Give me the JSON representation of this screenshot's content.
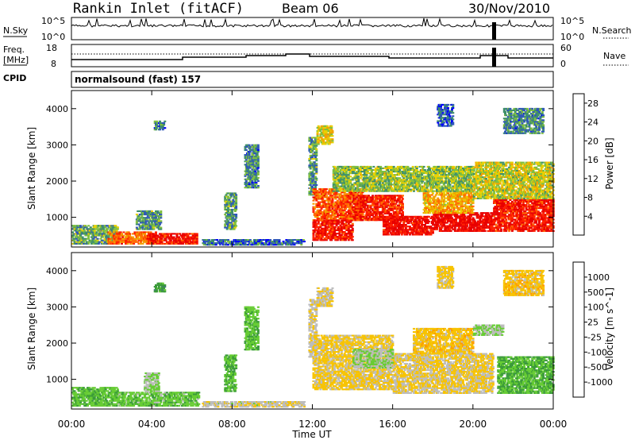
{
  "header": {
    "station": "Rankin Inlet (fitACF)",
    "beam": "Beam 06",
    "date": "30/Nov/2010"
  },
  "panels": {
    "nsky": {
      "label": "N.Sky",
      "top_tick": "10^5",
      "bottom_tick": "10^0"
    },
    "nsearch": {
      "label": "N.Search",
      "top_tick": "10^5",
      "bottom_tick": "10^0"
    },
    "freq": {
      "label_line1": "Freq.",
      "label_line2": "[MHz]",
      "top_tick": "18",
      "bottom_tick": "8"
    },
    "nave": {
      "label": "Nave",
      "top_tick": "60",
      "bottom_tick": "0"
    },
    "cpid": {
      "label": "CPID",
      "text": "normalsound (fast) 157"
    }
  },
  "colors": {
    "power_scale": [
      "#0000ff",
      "#2f57b8",
      "#3f8f6a",
      "#7fbf3f",
      "#e8d000",
      "#f2a000",
      "#ff6a00",
      "#ff2000",
      "#e80000"
    ],
    "velocity_scale": [
      "#ff0000",
      "#ff5a00",
      "#ff9a00",
      "#f7c300",
      "#bcbcbc",
      "#66cc33",
      "#3a9a3a",
      "#3f7f6a",
      "#2e5fa8",
      "#1f3fbf"
    ]
  },
  "chart_data": [
    {
      "type": "heatmap",
      "name": "power",
      "ylabel": "Slant Range [km]",
      "xlabel": "",
      "x_ticks": [
        "00:00",
        "04:00",
        "08:00",
        "12:00",
        "16:00",
        "20:00",
        "00:00"
      ],
      "y_ticks": [
        1000,
        2000,
        3000,
        4000
      ],
      "x_range_hours": [
        0,
        24
      ],
      "y_range_km": [
        180,
        4500
      ],
      "colorbar": {
        "label": "Power [dB]",
        "ticks": [
          4,
          8,
          12,
          16,
          20,
          24,
          28
        ],
        "range": [
          0,
          30
        ]
      },
      "regions": [
        {
          "t0": 0,
          "t1": 2.3,
          "r0": 250,
          "r1": 750,
          "value": 10
        },
        {
          "t0": 1.8,
          "t1": 4.2,
          "r0": 250,
          "r1": 600,
          "value": 22
        },
        {
          "t0": 3.8,
          "t1": 6.2,
          "r0": 250,
          "r1": 550,
          "value": 27
        },
        {
          "t0": 3.2,
          "t1": 4.4,
          "r0": 650,
          "r1": 1150,
          "value": 9
        },
        {
          "t0": 4.1,
          "t1": 4.6,
          "r0": 3400,
          "r1": 3650,
          "value": 7
        },
        {
          "t0": 8.6,
          "t1": 9.3,
          "r0": 1800,
          "r1": 3000,
          "value": 8
        },
        {
          "t0": 7.6,
          "t1": 8.2,
          "r0": 650,
          "r1": 1650,
          "value": 9
        },
        {
          "t0": 6.5,
          "t1": 11.6,
          "r0": 220,
          "r1": 400,
          "value": 6
        },
        {
          "t0": 11.8,
          "t1": 12.2,
          "r0": 1600,
          "r1": 3200,
          "value": 9
        },
        {
          "t0": 12.0,
          "t1": 14.5,
          "r0": 900,
          "r1": 1800,
          "value": 23
        },
        {
          "t0": 12.0,
          "t1": 14.0,
          "r0": 350,
          "r1": 900,
          "value": 27
        },
        {
          "t0": 14.0,
          "t1": 16.5,
          "r0": 900,
          "r1": 1600,
          "value": 26
        },
        {
          "t0": 15.5,
          "t1": 18.0,
          "r0": 500,
          "r1": 1000,
          "value": 28
        },
        {
          "t0": 18.0,
          "t1": 21.0,
          "r0": 600,
          "r1": 1100,
          "value": 29
        },
        {
          "t0": 17.5,
          "t1": 20.0,
          "r0": 1100,
          "r1": 1700,
          "value": 18
        },
        {
          "t0": 21.0,
          "t1": 24.0,
          "r0": 600,
          "r1": 1500,
          "value": 27
        },
        {
          "t0": 13.0,
          "t1": 20.0,
          "r0": 1700,
          "r1": 2400,
          "value": 12
        },
        {
          "t0": 20.0,
          "t1": 24.0,
          "r0": 1500,
          "r1": 2500,
          "value": 14
        },
        {
          "t0": 12.2,
          "t1": 13.0,
          "r0": 3000,
          "r1": 3500,
          "value": 15
        },
        {
          "t0": 18.2,
          "t1": 19.0,
          "r0": 3500,
          "r1": 4100,
          "value": 5
        },
        {
          "t0": 21.5,
          "t1": 23.5,
          "r0": 3300,
          "r1": 4000,
          "value": 8
        }
      ]
    },
    {
      "type": "heatmap",
      "name": "velocity",
      "ylabel": "Slant Range [km]",
      "xlabel": "Time UT",
      "x_ticks": [
        "00:00",
        "04:00",
        "08:00",
        "12:00",
        "16:00",
        "20:00",
        "00:00"
      ],
      "y_ticks": [
        1000,
        2000,
        3000,
        4000
      ],
      "x_range_hours": [
        0,
        24
      ],
      "y_range_km": [
        180,
        4500
      ],
      "colorbar": {
        "label": "Velocity [m s^-1]",
        "ticks": [
          1000,
          500,
          100,
          25,
          -25,
          -100,
          -500,
          -1000
        ],
        "range": [
          -1000,
          1000
        ]
      },
      "regions": [
        {
          "t0": 0,
          "t1": 2.3,
          "r0": 250,
          "r1": 750,
          "value": 150
        },
        {
          "t0": 2.3,
          "t1": 6.3,
          "r0": 250,
          "r1": 650,
          "value": 120
        },
        {
          "t0": 3.6,
          "t1": 4.3,
          "r0": 650,
          "r1": 1150,
          "value": 0
        },
        {
          "t0": 4.1,
          "t1": 4.6,
          "r0": 3400,
          "r1": 3650,
          "value": 300
        },
        {
          "t0": 8.6,
          "t1": 9.3,
          "r0": 1800,
          "r1": 3000,
          "value": 150
        },
        {
          "t0": 7.6,
          "t1": 8.2,
          "r0": 650,
          "r1": 1650,
          "value": 200
        },
        {
          "t0": 6.5,
          "t1": 11.6,
          "r0": 220,
          "r1": 400,
          "value": -120
        },
        {
          "t0": 11.8,
          "t1": 12.2,
          "r0": 1600,
          "r1": 3200,
          "value": -150
        },
        {
          "t0": 12.0,
          "t1": 16.0,
          "r0": 700,
          "r1": 2200,
          "value": -250
        },
        {
          "t0": 16.0,
          "t1": 21.0,
          "r0": 600,
          "r1": 1700,
          "value": -200
        },
        {
          "t0": 14.0,
          "t1": 16.0,
          "r0": 1300,
          "r1": 1800,
          "value": 0
        },
        {
          "t0": 17.0,
          "t1": 20.0,
          "r0": 1700,
          "r1": 2400,
          "value": -300
        },
        {
          "t0": 20.0,
          "t1": 21.5,
          "r0": 2200,
          "r1": 2500,
          "value": 0
        },
        {
          "t0": 21.2,
          "t1": 24.0,
          "r0": 600,
          "r1": 1600,
          "value": 200
        },
        {
          "t0": 12.2,
          "t1": 13.0,
          "r0": 3000,
          "r1": 3500,
          "value": -200
        },
        {
          "t0": 18.2,
          "t1": 19.0,
          "r0": 3500,
          "r1": 4100,
          "value": -250
        },
        {
          "t0": 21.5,
          "t1": 23.5,
          "r0": 3300,
          "r1": 4000,
          "value": -300
        }
      ]
    }
  ]
}
